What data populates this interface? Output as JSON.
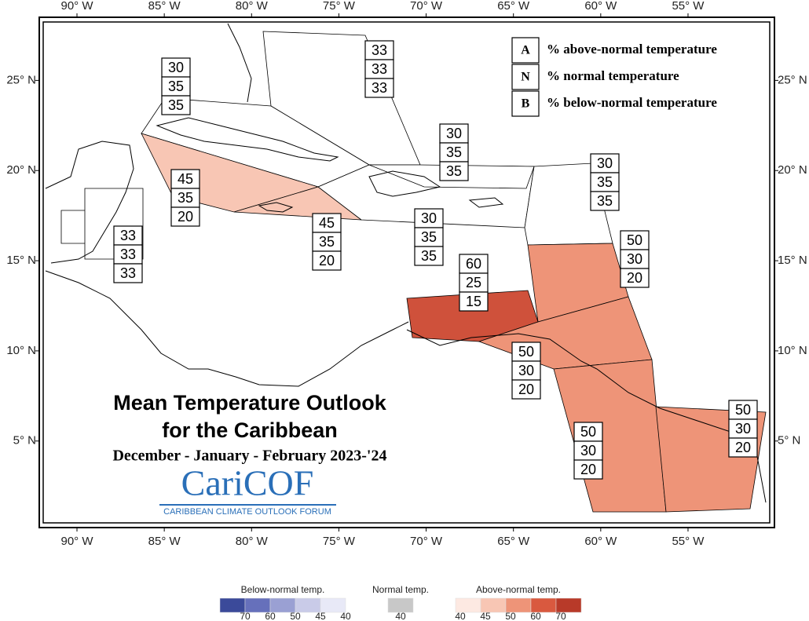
{
  "title": {
    "lines": [
      "Mean Temperature Outlook",
      "for the Caribbean"
    ],
    "period": "December - January - February 2023-'24"
  },
  "logo": {
    "name": "CariCOF",
    "subtitle": "CARIBBEAN CLIMATE OUTLOOK FORUM"
  },
  "key": [
    {
      "letter": "A",
      "text": "% above-normal temperature"
    },
    {
      "letter": "N",
      "text": "% normal temperature"
    },
    {
      "letter": "B",
      "text": "% below-normal temperature"
    }
  ],
  "map": {
    "lonlim": [
      -92.16,
      -50.05
    ],
    "latlim": [
      0.2,
      28.5
    ],
    "lonticks": [
      {
        "value": -90,
        "label": "90° W"
      },
      {
        "value": -85,
        "label": "85° W"
      },
      {
        "value": -80,
        "label": "80° W"
      },
      {
        "value": -75,
        "label": "75° W"
      },
      {
        "value": -70,
        "label": "70° W"
      },
      {
        "value": -65,
        "label": "65° W"
      },
      {
        "value": -60,
        "label": "60° W"
      },
      {
        "value": -55,
        "label": "55° W"
      }
    ],
    "latticks": [
      {
        "value": 25,
        "label": "25° N"
      },
      {
        "value": 20,
        "label": "20° N"
      },
      {
        "value": 15,
        "label": "15° N"
      },
      {
        "value": 10,
        "label": "10° N"
      },
      {
        "value": 5,
        "label": "5° N"
      }
    ]
  },
  "regions": [
    {
      "values": [
        33,
        33,
        33
      ],
      "color": "#ffffff"
    },
    {
      "values": [
        30,
        35,
        35
      ],
      "color": "#ffffff"
    },
    {
      "values": [
        33,
        33,
        33
      ],
      "color": "#ffffff"
    },
    {
      "values": [
        45,
        35,
        20
      ],
      "color": "#f8c6b4"
    },
    {
      "values": [
        45,
        35,
        20
      ],
      "color": "#f8c6b4"
    },
    {
      "values": [
        30,
        35,
        35
      ],
      "color": "#ffffff"
    },
    {
      "values": [
        30,
        35,
        35
      ],
      "color": "#ffffff"
    },
    {
      "values": [
        30,
        35,
        35
      ],
      "color": "#ffffff"
    },
    {
      "values": [
        50,
        30,
        20
      ],
      "color": "#ee9478"
    },
    {
      "values": [
        60,
        25,
        15
      ],
      "color": "#cf513b"
    },
    {
      "values": [
        50,
        30,
        20
      ],
      "color": "#ee9478"
    },
    {
      "values": [
        50,
        30,
        20
      ],
      "color": "#ee9478"
    },
    {
      "values": [
        50,
        30,
        20
      ],
      "color": "#ee9478"
    }
  ],
  "colorbar": [
    {
      "title": "Below-normal temp.",
      "colors": [
        "#3b4a9a",
        "#6670bb",
        "#9aa0d3",
        "#c9cbe8",
        "#e8e9f7"
      ],
      "ticks": [
        70,
        60,
        50,
        45,
        40
      ]
    },
    {
      "title": "Normal temp.",
      "colors": [
        "#c8c8c8"
      ],
      "ticks": [
        40
      ]
    },
    {
      "title": "Above-normal temp.",
      "colors": [
        "#fde9e2",
        "#f8c6b4",
        "#ee9478",
        "#d9593f",
        "#b83a29"
      ],
      "ticks": [
        40,
        45,
        50,
        60,
        70
      ]
    }
  ]
}
